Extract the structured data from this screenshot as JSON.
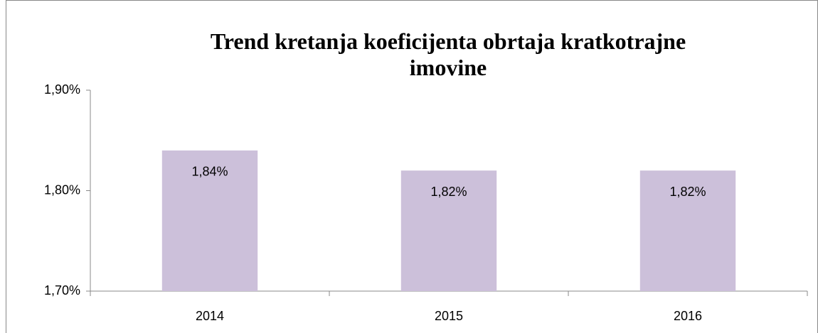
{
  "chart_data": {
    "type": "bar",
    "title": "Trend kretanja koeficijenta obrtaja kratkotrajne imovine",
    "categories": [
      "2014",
      "2015",
      "2016"
    ],
    "values": [
      1.84,
      1.82,
      1.82
    ],
    "value_labels": [
      "1,84%",
      "1,82%",
      "1,82%"
    ],
    "color": "#ccc0da",
    "ylim": [
      1.7,
      1.9
    ],
    "yticks": [
      {
        "value": 1.7,
        "label": "1,70%"
      },
      {
        "value": 1.8,
        "label": "1,80%"
      },
      {
        "value": 1.9,
        "label": "1,90%"
      }
    ],
    "grid": false
  }
}
